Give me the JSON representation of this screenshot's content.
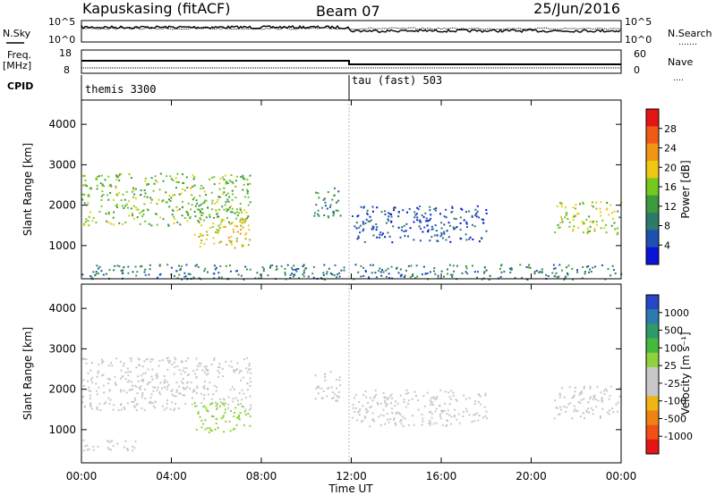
{
  "header": {
    "station": "Kapuskasing (fitACF)",
    "beam": "Beam 07",
    "date": "25/Jun/2016"
  },
  "noise_panel": {
    "left_label": "N.Sky",
    "right_label": "N.Search",
    "right_dots": "․․․․․․․",
    "tick_top": "10^5",
    "tick_bottom": "10^0"
  },
  "freq_panel": {
    "left_label_1": "Freq.",
    "left_label_2": "[MHz]",
    "left_tick_top": "18",
    "left_tick_bottom": "8",
    "right_label": "Nave",
    "right_dots": "․․․․",
    "right_tick_top": "60",
    "right_tick_bottom": "0"
  },
  "cpid": {
    "label": "CPID",
    "modes": [
      {
        "name": "themis 3300",
        "start": "00:00",
        "end": "12:00"
      },
      {
        "name": "tau (fast) 503",
        "start": "12:00",
        "end": "24:00"
      }
    ]
  },
  "x_axis": {
    "label": "Time UT",
    "ticks": [
      "00:00",
      "04:00",
      "08:00",
      "12:00",
      "16:00",
      "20:00",
      "00:00"
    ]
  },
  "power_colorbar": {
    "label": "Power [dB]",
    "ticks": [
      "4",
      "8",
      "12",
      "16",
      "20",
      "24",
      "28"
    ],
    "colors": [
      "#0a14d8",
      "#1e50b4",
      "#2e7a6a",
      "#3c9a3c",
      "#74c81e",
      "#f0c814",
      "#f09614",
      "#f05a14",
      "#e61414"
    ]
  },
  "velocity_colorbar": {
    "label": "Velocity [m s⁻¹]",
    "ticks": [
      "1000",
      "500",
      "100",
      "25",
      "-25",
      "-100",
      "-500",
      "-1000"
    ],
    "colors": [
      "#2846c8",
      "#2e7ab0",
      "#2e9a6a",
      "#46b83c",
      "#90d23c",
      "#c8c8c8",
      "#c8c8c8",
      "#f0b414",
      "#f08214",
      "#f05014",
      "#e61414"
    ]
  },
  "chart_data": [
    {
      "type": "heatmap",
      "title": "Power",
      "xlabel": "Time UT",
      "ylabel": "Slant Range [km]",
      "x_range_hours": [
        0,
        24
      ],
      "ylim": [
        180,
        4600
      ],
      "yticks": [
        1000,
        2000,
        3000,
        4000
      ],
      "colorbar": {
        "label": "Power [dB]",
        "range": [
          0,
          30
        ]
      },
      "echo_regions": [
        {
          "t_start": 0.0,
          "t_end": 7.5,
          "range_start": 1500,
          "range_end": 2800,
          "power_db": 14
        },
        {
          "t_start": 5.0,
          "t_end": 7.5,
          "range_start": 950,
          "range_end": 1700,
          "power_db": 18
        },
        {
          "t_start": 10.3,
          "t_end": 11.5,
          "range_start": 1700,
          "range_end": 2500,
          "power_db": 10
        },
        {
          "t_start": 12.0,
          "t_end": 18.0,
          "range_start": 1100,
          "range_end": 2000,
          "power_db": 5
        },
        {
          "t_start": 21.0,
          "t_end": 24.0,
          "range_start": 1300,
          "range_end": 2100,
          "power_db": 16
        },
        {
          "t_start": 0.0,
          "t_end": 24.0,
          "range_start": 180,
          "range_end": 550,
          "power_db": 8
        }
      ]
    },
    {
      "type": "heatmap",
      "title": "Velocity",
      "xlabel": "Time UT",
      "ylabel": "Slant Range [km]",
      "x_range_hours": [
        0,
        24
      ],
      "ylim": [
        180,
        4600
      ],
      "yticks": [
        1000,
        2000,
        3000,
        4000
      ],
      "colorbar": {
        "label": "Velocity [m s⁻¹]",
        "range": [
          -1000,
          1000
        ]
      },
      "echo_regions": [
        {
          "t_start": 0.0,
          "t_end": 7.5,
          "range_start": 1500,
          "range_end": 2800,
          "velocity": 0
        },
        {
          "t_start": 5.0,
          "t_end": 7.5,
          "range_start": 950,
          "range_end": 1700,
          "velocity": 200
        },
        {
          "t_start": 0.0,
          "t_end": 2.5,
          "range_start": 500,
          "range_end": 800,
          "velocity": -120
        },
        {
          "t_start": 10.3,
          "t_end": 11.5,
          "range_start": 1700,
          "range_end": 2500,
          "velocity": -100
        },
        {
          "t_start": 12.0,
          "t_end": 18.0,
          "range_start": 1100,
          "range_end": 2000,
          "velocity": 0
        },
        {
          "t_start": 21.0,
          "t_end": 24.0,
          "range_start": 1300,
          "range_end": 2100,
          "velocity": 0
        }
      ]
    }
  ]
}
